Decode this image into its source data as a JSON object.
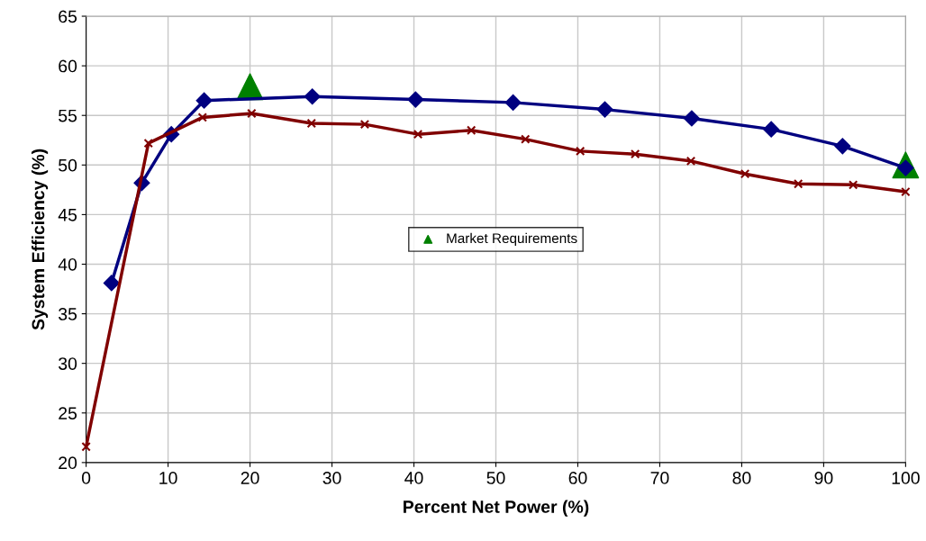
{
  "chart_data": {
    "type": "line",
    "xlabel": "Percent Net Power (%)",
    "ylabel": "System Efficiency (%)",
    "xlim": [
      0,
      100
    ],
    "xticks": [
      0,
      10,
      20,
      30,
      40,
      50,
      60,
      70,
      80,
      90,
      100
    ],
    "ylim": [
      20,
      65
    ],
    "yticks": [
      20,
      25,
      30,
      35,
      40,
      45,
      50,
      55,
      60,
      65
    ],
    "grid": true,
    "legend": "center",
    "series": [
      {
        "color": "#000080",
        "marker": "diamond",
        "x": [
          3.1,
          6.8,
          10.4,
          14.4,
          27.6,
          40.2,
          52.1,
          63.3,
          73.9,
          83.6,
          92.3,
          100
        ],
        "values": [
          38.1,
          48.2,
          53.1,
          56.5,
          56.9,
          56.6,
          56.3,
          55.6,
          54.7,
          53.6,
          51.9,
          49.7
        ]
      },
      {
        "color": "#800000",
        "marker": "cross",
        "x": [
          0,
          7.6,
          14.2,
          20.2,
          27.5,
          34,
          40.5,
          47,
          53.6,
          60.3,
          67,
          73.8,
          80.4,
          86.9,
          93.6,
          100
        ],
        "values": [
          21.6,
          52.2,
          54.8,
          55.2,
          54.2,
          54.1,
          53.1,
          53.5,
          52.6,
          51.4,
          51.1,
          50.4,
          49.1,
          48.1,
          48,
          47.3
        ]
      },
      {
        "type": "scatter",
        "name": "Market Requirements",
        "color": "#008000",
        "marker": "triangle",
        "x": [
          20,
          100
        ],
        "values": [
          57.9,
          50
        ]
      }
    ]
  }
}
